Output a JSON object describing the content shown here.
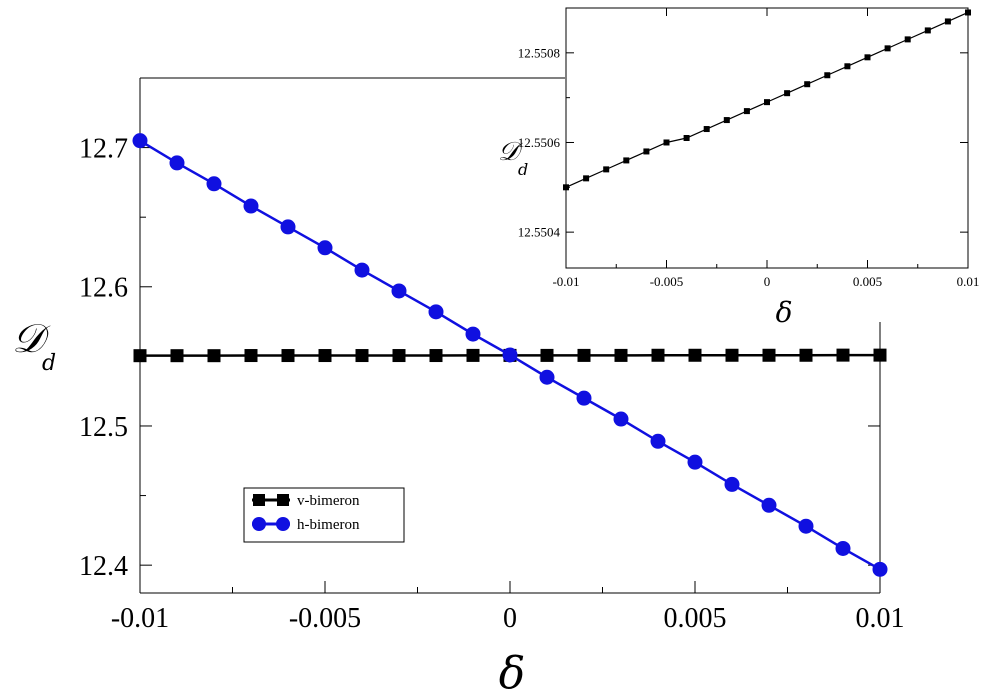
{
  "chart_data": [
    {
      "type": "line",
      "xlabel": "δ",
      "ylabel": "𝒟",
      "ylabel_subscript": "d",
      "xlim": [
        -0.01,
        0.01
      ],
      "ylim": [
        12.38,
        12.75
      ],
      "xticks": [
        -0.01,
        -0.005,
        0,
        0.005,
        0.01
      ],
      "xtick_labels": [
        "-0.01",
        "-0.005",
        "0",
        "0.005",
        "0.01"
      ],
      "yticks": [
        12.4,
        12.5,
        12.6,
        12.7
      ],
      "ytick_labels": [
        "12.4",
        "12.5",
        "12.6",
        "12.7"
      ],
      "grid": false,
      "legend_position": "lower-left",
      "series": [
        {
          "name": "v-bimeron",
          "color": "#000000",
          "marker": "square",
          "x": [
            -0.01,
            -0.009,
            -0.008,
            -0.007,
            -0.006,
            -0.005,
            -0.004,
            -0.003,
            -0.002,
            -0.001,
            0,
            0.001,
            0.002,
            0.003,
            0.004,
            0.005,
            0.006,
            0.007,
            0.008,
            0.009,
            0.01
          ],
          "y": [
            12.5505,
            12.5505,
            12.5505,
            12.5506,
            12.5506,
            12.5506,
            12.5506,
            12.5506,
            12.5506,
            12.5507,
            12.5507,
            12.5507,
            12.5507,
            12.5507,
            12.5508,
            12.5508,
            12.5508,
            12.5508,
            12.5508,
            12.5509,
            12.5509
          ]
        },
        {
          "name": "h-bimeron",
          "color": "#1010e0",
          "marker": "circle",
          "x": [
            -0.01,
            -0.009,
            -0.008,
            -0.007,
            -0.006,
            -0.005,
            -0.004,
            -0.003,
            -0.002,
            -0.001,
            0,
            0.001,
            0.002,
            0.003,
            0.004,
            0.005,
            0.006,
            0.007,
            0.008,
            0.009,
            0.01
          ],
          "y": [
            12.705,
            12.689,
            12.674,
            12.658,
            12.643,
            12.628,
            12.612,
            12.597,
            12.582,
            12.566,
            12.551,
            12.535,
            12.52,
            12.505,
            12.489,
            12.474,
            12.458,
            12.443,
            12.428,
            12.412,
            12.397
          ]
        }
      ]
    },
    {
      "type": "line",
      "xlabel": "δ",
      "ylabel": "𝒟",
      "ylabel_subscript": "d",
      "xlim": [
        -0.01,
        0.01
      ],
      "ylim": [
        12.55032,
        12.5509
      ],
      "xticks": [
        -0.01,
        -0.005,
        0,
        0.005,
        0.01
      ],
      "xtick_labels": [
        "-0.01",
        "-0.005",
        "0",
        "0.005",
        "0.01"
      ],
      "yticks": [
        12.5504,
        12.5506,
        12.5508
      ],
      "ytick_labels": [
        "12.5504",
        "12.5506",
        "12.5508"
      ],
      "grid": false,
      "series": [
        {
          "color": "#000000",
          "marker": "square",
          "x": [
            -0.01,
            -0.009,
            -0.008,
            -0.007,
            -0.006,
            -0.005,
            -0.004,
            -0.003,
            -0.002,
            -0.001,
            0,
            0.001,
            0.002,
            0.003,
            0.004,
            0.005,
            0.006,
            0.007,
            0.008,
            0.009,
            0.01
          ],
          "y": [
            12.5505,
            12.55052,
            12.55054,
            12.55056,
            12.55058,
            12.5506,
            12.55061,
            12.55063,
            12.55065,
            12.55067,
            12.55069,
            12.55071,
            12.55073,
            12.55075,
            12.55077,
            12.55079,
            12.55081,
            12.55083,
            12.55085,
            12.55087,
            12.55089
          ]
        }
      ]
    }
  ]
}
